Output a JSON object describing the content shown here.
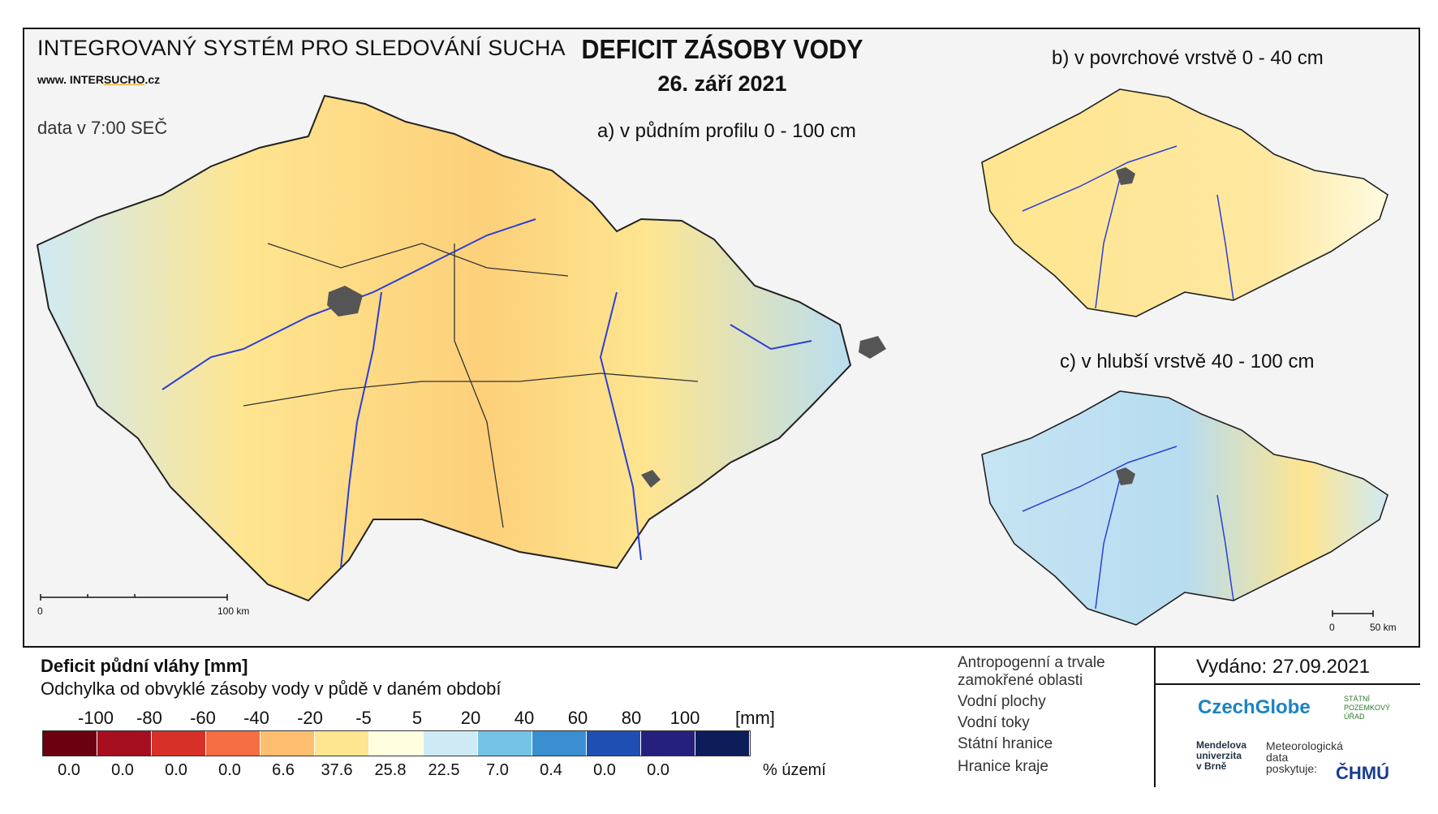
{
  "header": {
    "org": "INTEGROVANÝ SYSTÉM PRO SLEDOVÁNÍ SUCHA",
    "url_prefix": "www. INTER",
    "url_sucho": "SUCHO",
    "url_suffix": ".cz",
    "data_time": "data v 7:00 SEČ",
    "title": "DEFICIT ZÁSOBY VODY",
    "date": "26. září 2021"
  },
  "maps": {
    "a_title": "a) v půdním profilu 0 - 100 cm",
    "b_title": "b) v povrchové vrstvě 0 - 40 cm",
    "c_title": "c) v hlubší vrstvě 40 - 100 cm",
    "scale_a": [
      "0",
      "100 km"
    ],
    "scale_c": [
      "0",
      "50 km"
    ]
  },
  "legend": {
    "title": "Deficit půdní vláhy  [mm]",
    "subtitle": "Odchylka od obvyklé zásoby vody v půdě v daném období",
    "ticks": [
      "-100",
      "-80",
      "-60",
      "-40",
      "-20",
      "-5",
      "5",
      "20",
      "40",
      "60",
      "80",
      "100"
    ],
    "tick_unit": "[mm]",
    "colors": [
      "#6b0010",
      "#a50f1f",
      "#d73027",
      "#f46d43",
      "#fdbf6f",
      "#fee590",
      "#ffffe0",
      "#cfeaf5",
      "#74c3e6",
      "#3a8fd0",
      "#1f4fb3",
      "#25207e",
      "#0c1d5a"
    ],
    "percents": [
      "0.0",
      "0.0",
      "0.0",
      "0.0",
      "6.6",
      "37.6",
      "25.8",
      "22.5",
      "7.0",
      "0.4",
      "0.0",
      "0.0"
    ],
    "percent_unit": "% území",
    "items": [
      "Antropogenní a trvale",
      "zamokřené oblasti",
      "Vodní plochy",
      "Vodní toky",
      "Státní hranice",
      "Hranice kraje"
    ]
  },
  "footer": {
    "issued": "Vydáno: 27.09.2021",
    "czechglobe": "CzechGlobe",
    "spu": [
      "STÁTNÍ",
      "POZEMKOVÝ",
      "ÚŘAD"
    ],
    "mendel": [
      "Mendelova",
      "univerzita",
      "v Brně"
    ],
    "met": [
      "Meteorologická",
      "data",
      "poskytuje:"
    ],
    "chmu": "ČHMÚ"
  }
}
